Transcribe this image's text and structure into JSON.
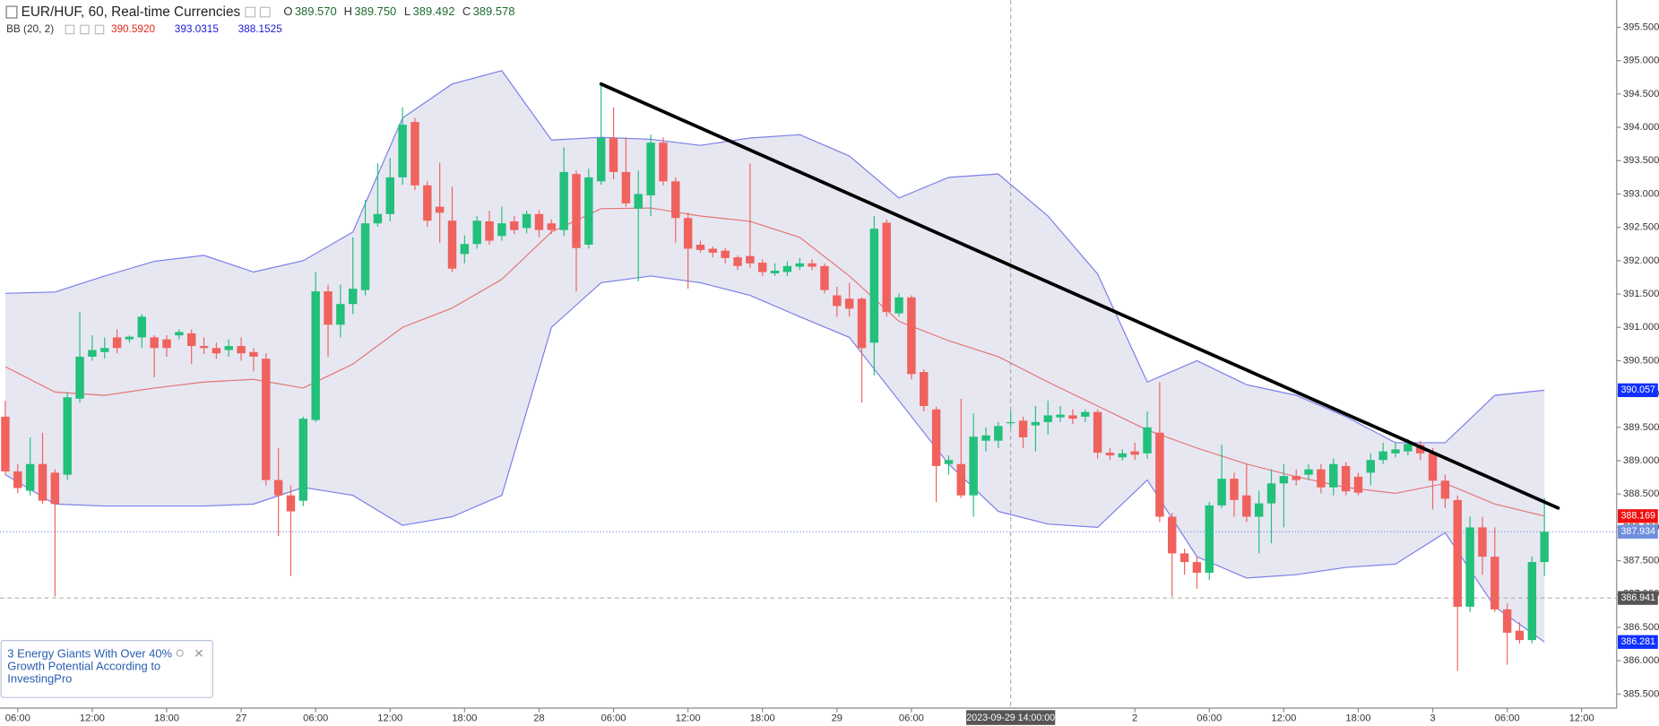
{
  "chart_data": {
    "type": "candlestick",
    "title": "EUR/HUF, 60, Real-time Currencies",
    "readout": [
      {
        "key": "O",
        "value": 389.57,
        "label": "389.570"
      },
      {
        "key": "H",
        "value": 389.75,
        "label": "389.750"
      },
      {
        "key": "L",
        "value": 389.492,
        "label": "389.492"
      },
      {
        "key": "C",
        "value": 389.578,
        "label": "389.578"
      }
    ],
    "x": [
      0,
      1,
      2,
      3,
      4,
      5,
      6,
      7,
      8,
      9,
      10,
      11,
      12,
      13,
      14,
      15,
      16,
      17,
      18,
      19,
      20,
      21,
      22,
      23,
      24,
      25,
      26,
      27,
      28,
      29,
      30,
      31,
      32,
      33,
      34,
      35,
      36,
      37,
      38,
      39,
      40,
      41,
      42,
      43,
      44,
      45,
      46,
      47,
      48,
      49,
      50,
      51,
      52,
      53,
      54,
      55,
      56,
      57,
      58,
      59,
      60,
      61,
      62,
      63,
      64,
      65,
      66,
      67,
      68,
      69,
      70,
      71,
      72,
      73,
      74,
      75,
      76,
      77,
      78,
      79,
      80,
      81,
      82,
      83,
      84,
      85,
      86,
      87,
      88,
      89,
      90,
      91,
      92,
      93,
      94,
      95,
      96,
      97,
      98,
      99,
      100,
      101,
      102,
      103,
      104,
      105,
      106,
      107,
      108,
      109,
      110,
      111,
      112,
      113,
      114,
      115,
      116,
      117,
      118,
      119,
      120,
      121,
      122,
      123,
      124
    ],
    "candles": {
      "open": [
        389.66,
        388.84,
        388.55,
        388.95,
        388.82,
        388.79,
        389.93,
        390.56,
        390.63,
        390.85,
        390.82,
        390.85,
        390.85,
        390.82,
        390.88,
        390.91,
        390.72,
        390.69,
        390.66,
        390.72,
        390.63,
        390.53,
        388.71,
        388.48,
        388.4,
        389.61,
        391.54,
        391.04,
        391.35,
        391.56,
        392.56,
        392.7,
        393.25,
        394.08,
        393.13,
        392.81,
        392.6,
        392.1,
        392.25,
        392.59,
        392.37,
        392.59,
        392.49,
        392.7,
        392.56,
        392.46,
        393.3,
        392.24,
        393.19,
        393.84,
        393.33,
        392.78,
        392.98,
        393.77,
        393.19,
        392.64,
        392.24,
        392.18,
        392.15,
        392.05,
        392.07,
        391.97,
        391.81,
        391.83,
        391.91,
        391.96,
        391.92,
        391.48,
        391.43,
        391.43,
        390.77,
        392.57,
        391.21,
        391.45,
        390.33,
        389.77,
        388.95,
        388.95,
        388.48,
        389.3,
        389.3,
        389.57,
        389.6,
        389.53,
        389.58,
        389.65,
        389.68,
        389.66,
        389.73,
        389.12,
        389.05,
        389.14,
        389.11,
        389.42,
        388.16,
        387.61,
        387.48,
        387.32,
        388.33,
        388.73,
        388.48,
        388.16,
        388.36,
        388.66,
        388.77,
        388.79,
        388.87,
        388.6,
        388.92,
        388.76,
        388.82,
        389.01,
        389.11,
        389.14,
        389.24,
        389.11,
        388.7,
        388.41,
        386.81,
        388.0,
        387.56,
        386.77,
        386.45,
        386.31,
        387.48
      ],
      "high": [
        389.9,
        388.95,
        389.35,
        389.42,
        388.87,
        390.03,
        391.23,
        390.88,
        390.85,
        390.97,
        390.88,
        391.2,
        390.88,
        390.88,
        390.97,
        390.97,
        390.85,
        390.77,
        390.82,
        390.85,
        390.69,
        390.61,
        389.19,
        388.63,
        389.66,
        391.83,
        391.64,
        391.64,
        392.35,
        392.91,
        393.46,
        393.54,
        394.3,
        394.14,
        393.19,
        393.47,
        393.11,
        392.38,
        392.67,
        392.75,
        392.81,
        392.67,
        392.75,
        392.76,
        392.62,
        393.7,
        393.35,
        393.38,
        394.65,
        394.3,
        393.85,
        393.35,
        393.89,
        393.85,
        393.25,
        392.72,
        392.3,
        392.21,
        392.19,
        392.08,
        393.46,
        392.02,
        391.96,
        391.99,
        392.04,
        392.02,
        391.96,
        391.61,
        391.67,
        391.45,
        392.67,
        392.62,
        391.51,
        391.48,
        390.37,
        389.81,
        389.08,
        389.93,
        389.71,
        389.5,
        389.58,
        389.75,
        389.66,
        389.82,
        389.9,
        389.82,
        389.77,
        389.77,
        389.77,
        389.19,
        389.17,
        389.27,
        389.74,
        390.18,
        388.22,
        387.68,
        387.56,
        388.38,
        389.24,
        388.82,
        388.95,
        388.55,
        388.87,
        388.95,
        388.87,
        388.95,
        388.95,
        389.03,
        388.98,
        388.82,
        389.11,
        389.27,
        389.27,
        389.33,
        389.3,
        389.19,
        388.79,
        388.48,
        388.16,
        388.16,
        388.0,
        386.86,
        386.58,
        387.56,
        388.44
      ],
      "low": [
        388.79,
        388.51,
        388.48,
        388.35,
        386.96,
        388.71,
        389.87,
        390.5,
        390.53,
        390.61,
        390.77,
        390.69,
        390.25,
        390.56,
        390.82,
        390.45,
        390.6,
        390.53,
        390.56,
        390.5,
        390.34,
        388.63,
        387.87,
        387.27,
        388.32,
        389.58,
        390.56,
        390.85,
        391.2,
        391.48,
        392.51,
        392.59,
        393.14,
        393.06,
        392.51,
        392.27,
        391.83,
        391.96,
        392.18,
        392.24,
        392.3,
        392.4,
        392.41,
        392.35,
        392.4,
        392.37,
        391.54,
        392.18,
        393.14,
        393.22,
        392.81,
        391.69,
        392.67,
        393.13,
        392.27,
        391.58,
        392.12,
        392.05,
        391.96,
        391.86,
        391.89,
        391.77,
        391.77,
        391.77,
        391.86,
        391.86,
        391.51,
        391.16,
        391.16,
        389.87,
        390.28,
        391.16,
        391.16,
        390.22,
        389.74,
        388.38,
        388.79,
        388.44,
        388.16,
        389.14,
        389.19,
        389.492,
        389.19,
        389.14,
        389.39,
        389.58,
        389.55,
        389.58,
        389.03,
        389.01,
        389.0,
        389.01,
        389.03,
        388.08,
        386.96,
        387.29,
        387.08,
        387.21,
        388.29,
        388.16,
        388.08,
        387.61,
        387.76,
        388.0,
        388.63,
        388.71,
        388.51,
        388.48,
        388.48,
        388.48,
        388.63,
        388.95,
        389.05,
        389.08,
        389.01,
        388.27,
        388.29,
        385.85,
        386.73,
        387.29,
        386.73,
        385.94,
        386.26,
        386.26,
        387.27
      ],
      "close": [
        388.84,
        388.59,
        388.95,
        388.4,
        388.35,
        389.95,
        390.56,
        390.66,
        390.69,
        390.69,
        390.86,
        391.16,
        390.69,
        390.69,
        390.93,
        390.72,
        390.69,
        390.61,
        390.72,
        390.61,
        390.56,
        388.71,
        388.48,
        388.24,
        389.63,
        391.54,
        391.04,
        391.35,
        391.58,
        392.56,
        392.7,
        393.25,
        394.04,
        393.13,
        392.6,
        392.72,
        391.88,
        392.25,
        392.6,
        392.3,
        392.56,
        392.46,
        392.7,
        392.46,
        392.46,
        393.33,
        392.19,
        393.25,
        393.84,
        393.33,
        392.86,
        393.0,
        393.77,
        393.19,
        392.64,
        392.18,
        392.16,
        392.12,
        392.04,
        391.92,
        391.96,
        391.83,
        391.85,
        391.92,
        391.96,
        391.91,
        391.56,
        391.32,
        391.28,
        390.69,
        392.48,
        391.23,
        391.45,
        390.3,
        389.82,
        388.92,
        389.01,
        388.48,
        389.36,
        389.38,
        389.52,
        389.578,
        389.35,
        389.58,
        389.68,
        389.69,
        389.63,
        389.73,
        389.12,
        389.08,
        389.11,
        389.09,
        389.5,
        388.16,
        387.61,
        387.48,
        387.32,
        388.33,
        388.73,
        388.41,
        388.16,
        388.36,
        388.66,
        388.77,
        388.71,
        388.87,
        388.6,
        388.95,
        388.54,
        388.52,
        389.01,
        389.14,
        389.17,
        389.25,
        389.11,
        388.7,
        388.43,
        386.81,
        388.0,
        387.56,
        386.77,
        386.42,
        386.31,
        387.48,
        387.934
      ]
    },
    "up_color": "#22c07a",
    "down_color": "#f0625d",
    "indicator": {
      "label": "BB (20, 2)",
      "legend": [
        {
          "value": 390.592,
          "label": "390.5920",
          "color": "#e0281e"
        },
        {
          "value": 393.0315,
          "label": "393.0315",
          "color": "#1a1ad0"
        },
        {
          "value": 388.1525,
          "label": "388.1525",
          "color": "#1a1ad0"
        }
      ],
      "x": [
        0,
        4,
        8,
        12,
        16,
        20,
        24,
        28,
        32,
        36,
        40,
        44,
        48,
        52,
        56,
        60,
        64,
        68,
        72,
        76,
        80,
        84,
        88,
        92,
        96,
        100,
        104,
        108,
        112,
        116,
        120,
        124
      ],
      "upper": [
        391.51,
        391.53,
        391.77,
        391.99,
        392.08,
        391.83,
        392.0,
        392.43,
        394.14,
        394.65,
        394.85,
        393.81,
        393.85,
        393.82,
        393.73,
        393.84,
        393.89,
        393.57,
        392.94,
        393.25,
        393.3,
        392.67,
        391.8,
        390.18,
        390.5,
        390.14,
        389.98,
        389.66,
        389.27,
        389.27,
        389.98,
        390.057
      ],
      "middle": [
        390.41,
        390.03,
        389.98,
        390.09,
        390.18,
        390.22,
        390.09,
        390.45,
        391.0,
        391.29,
        391.72,
        392.43,
        392.78,
        392.79,
        392.67,
        392.59,
        392.35,
        391.77,
        391.09,
        390.8,
        390.56,
        390.18,
        389.82,
        389.46,
        389.19,
        388.95,
        388.76,
        388.6,
        388.51,
        388.66,
        388.35,
        388.169
      ],
      "lower": [
        388.79,
        388.35,
        388.32,
        388.32,
        388.32,
        388.35,
        388.6,
        388.48,
        388.03,
        388.16,
        388.48,
        391.0,
        391.67,
        391.77,
        391.67,
        391.48,
        391.16,
        390.85,
        389.9,
        388.95,
        388.24,
        388.05,
        388.0,
        388.71,
        387.56,
        387.24,
        387.29,
        387.4,
        387.45,
        387.92,
        386.81,
        386.281
      ],
      "band_color": "#7a7ee8",
      "fill_color": "#e4e4f1",
      "middle_color": "#e57373"
    },
    "trendline": {
      "x": [
        48,
        125.1
      ],
      "values": [
        394.65,
        388.29
      ],
      "color": "#000000"
    },
    "crosshair": {
      "x": 81,
      "x_label": "2023-09-29 14:00:00",
      "price": 386.941
    },
    "tag_colors": {
      "upper": "#1030ff",
      "middle": "#f01010",
      "last": "#6f8fdc",
      "crosshair": "#555555",
      "lower": "#1030ff"
    },
    "xlim": [
      -0.43,
      129.82
    ],
    "ylim": [
      385.29,
      395.91
    ],
    "xticks": [
      {
        "value": 1,
        "label": "06:00"
      },
      {
        "value": 7,
        "label": "12:00"
      },
      {
        "value": 13,
        "label": "18:00"
      },
      {
        "value": 19,
        "label": "27"
      },
      {
        "value": 25,
        "label": "06:00"
      },
      {
        "value": 31,
        "label": "12:00"
      },
      {
        "value": 37,
        "label": "18:00"
      },
      {
        "value": 43,
        "label": "28"
      },
      {
        "value": 49,
        "label": "06:00"
      },
      {
        "value": 55,
        "label": "12:00"
      },
      {
        "value": 61,
        "label": "18:00"
      },
      {
        "value": 67,
        "label": "29"
      },
      {
        "value": 73,
        "label": "06:00"
      },
      {
        "value": 91,
        "label": "2"
      },
      {
        "value": 97,
        "label": "06:00"
      },
      {
        "value": 103,
        "label": "12:00"
      },
      {
        "value": 109,
        "label": "18:00"
      },
      {
        "value": 115,
        "label": "3"
      },
      {
        "value": 121,
        "label": "06:00"
      },
      {
        "value": 127,
        "label": "12:00"
      }
    ],
    "yticks": [
      {
        "value": 385.5,
        "label": "385.500"
      },
      {
        "value": 386,
        "label": "386.000"
      },
      {
        "value": 386.5,
        "label": "386.500"
      },
      {
        "value": 387,
        "label": "387.000"
      },
      {
        "value": 387.5,
        "label": "387.500"
      },
      {
        "value": 388,
        "label": "388.000"
      },
      {
        "value": 388.5,
        "label": "388.500"
      },
      {
        "value": 389,
        "label": "389.000"
      },
      {
        "value": 389.5,
        "label": "389.500"
      },
      {
        "value": 390,
        "label": "390.000"
      },
      {
        "value": 390.5,
        "label": "390.500"
      },
      {
        "value": 391,
        "label": "391.000"
      },
      {
        "value": 391.5,
        "label": "391.500"
      },
      {
        "value": 392,
        "label": "392.000"
      },
      {
        "value": 392.5,
        "label": "392.500"
      },
      {
        "value": 393,
        "label": "393.000"
      },
      {
        "value": 393.5,
        "label": "393.500"
      },
      {
        "value": 394,
        "label": "394.000"
      },
      {
        "value": 394.5,
        "label": "394.500"
      },
      {
        "value": 395,
        "label": "395.000"
      },
      {
        "value": 395.5,
        "label": "395.500"
      }
    ],
    "grid": false
  },
  "ad": {
    "lines": [
      "3 Energy Giants With Over 40%",
      "Growth Potential According to",
      "InvestingPro"
    ]
  }
}
